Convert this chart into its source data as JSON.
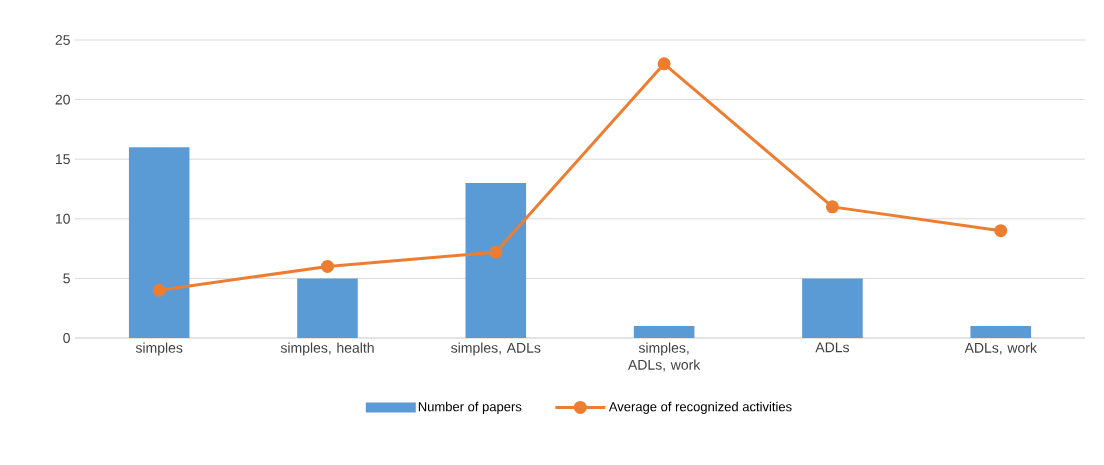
{
  "chart_data": {
    "type": "bar",
    "categories": [
      "simples",
      "simples, health",
      "simples, ADLs",
      "simples, ADLs, work",
      "ADLs",
      "ADLs, work"
    ],
    "series": [
      {
        "name": "Number of papers",
        "color": "#5b9bd5",
        "values": [
          16,
          5,
          13,
          1,
          5,
          1
        ]
      },
      {
        "name": "Average of recognized activities",
        "type": "line",
        "color": "#ed7d31",
        "values": [
          4,
          6,
          7.2,
          23,
          11,
          9
        ],
        "marker": "circle",
        "line_style": "solid"
      }
    ],
    "ylim": [
      0,
      25
    ],
    "yticks": [
      0,
      5,
      10,
      15,
      20,
      25
    ],
    "grid": "y",
    "legend": "bottom"
  }
}
